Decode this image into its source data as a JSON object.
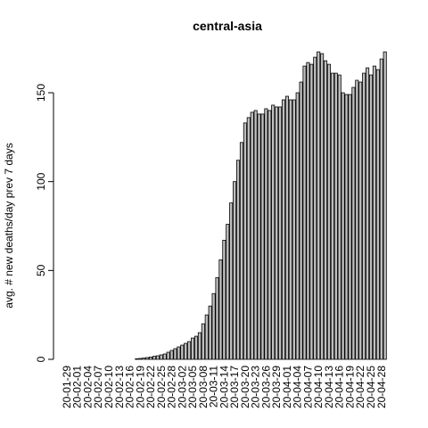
{
  "chart_data": {
    "type": "bar",
    "title": "central-asia",
    "y_label": "avg. # new deaths/day prev  7  days",
    "categories": [
      "20-01-29",
      null,
      null,
      "20-02-01",
      null,
      null,
      "20-02-04",
      null,
      null,
      "20-02-07",
      null,
      null,
      "20-02-10",
      null,
      null,
      "20-02-13",
      null,
      null,
      "20-02-16",
      null,
      null,
      "20-02-19",
      null,
      null,
      "20-02-22",
      null,
      null,
      "20-02-25",
      null,
      null,
      "20-02-28",
      null,
      null,
      "20-03-02",
      null,
      null,
      "20-03-05",
      null,
      null,
      "20-03-08",
      null,
      null,
      "20-03-11",
      null,
      null,
      "20-03-14",
      null,
      null,
      "20-03-17",
      null,
      null,
      "20-03-20",
      null,
      null,
      "20-03-23",
      null,
      null,
      "20-03-26",
      null,
      null,
      "20-03-29",
      null,
      null,
      "20-04-01",
      null,
      null,
      "20-04-04",
      null,
      null,
      "20-04-07",
      null,
      null,
      "20-04-10",
      null,
      null,
      "20-04-13",
      null,
      null,
      "20-04-16",
      null,
      null,
      "20-04-19",
      null,
      null,
      "20-04-22",
      null,
      null,
      "20-04-25",
      null,
      null,
      "20-04-28",
      null
    ],
    "values": [
      0,
      0,
      0,
      0,
      0,
      0,
      0,
      0,
      0,
      0,
      0,
      0,
      0,
      0,
      0,
      0,
      0,
      0,
      0,
      0,
      0.3,
      0.5,
      0.7,
      1,
      1.3,
      1.7,
      2,
      2.5,
      3,
      4,
      5,
      6,
      7,
      8,
      9,
      10,
      12,
      13,
      15,
      20,
      25,
      30,
      37,
      46,
      56,
      67,
      76,
      88,
      100,
      112,
      122,
      133,
      136,
      139,
      140,
      138,
      138,
      141,
      140,
      143,
      142,
      142,
      146,
      148,
      146,
      146,
      150,
      156,
      165,
      167,
      166,
      170,
      173,
      172,
      168,
      166,
      161,
      161,
      160,
      150,
      149,
      149,
      153,
      157,
      156,
      161,
      164,
      160,
      165,
      163,
      169,
      173
    ],
    "color": "#bebebe",
    "ylim": [
      0,
      175
    ],
    "yticks": [
      0,
      50,
      100,
      150
    ]
  }
}
